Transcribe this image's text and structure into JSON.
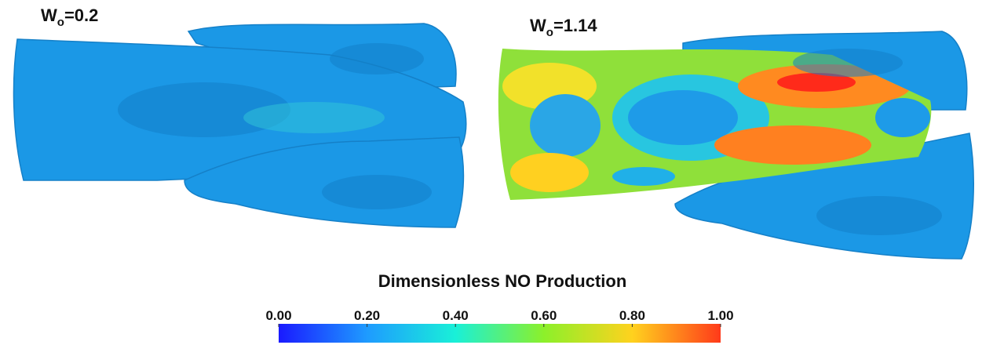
{
  "panels": [
    {
      "symbol": "W",
      "subscript": "o",
      "value_text": "=0.2"
    },
    {
      "symbol": "W",
      "subscript": "o",
      "value_text": "=1.14"
    }
  ],
  "colorbar": {
    "title": "Dimensionless NO Production",
    "range": [
      0,
      1
    ],
    "ticks": [
      {
        "value": 0,
        "label": "0.00"
      },
      {
        "value": 0.2,
        "label": "0.20"
      },
      {
        "value": 0.4,
        "label": "0.40"
      },
      {
        "value": 0.6,
        "label": "0.60"
      },
      {
        "value": 0.8,
        "label": "0.80"
      },
      {
        "value": 1,
        "label": "1.00"
      }
    ]
  }
}
